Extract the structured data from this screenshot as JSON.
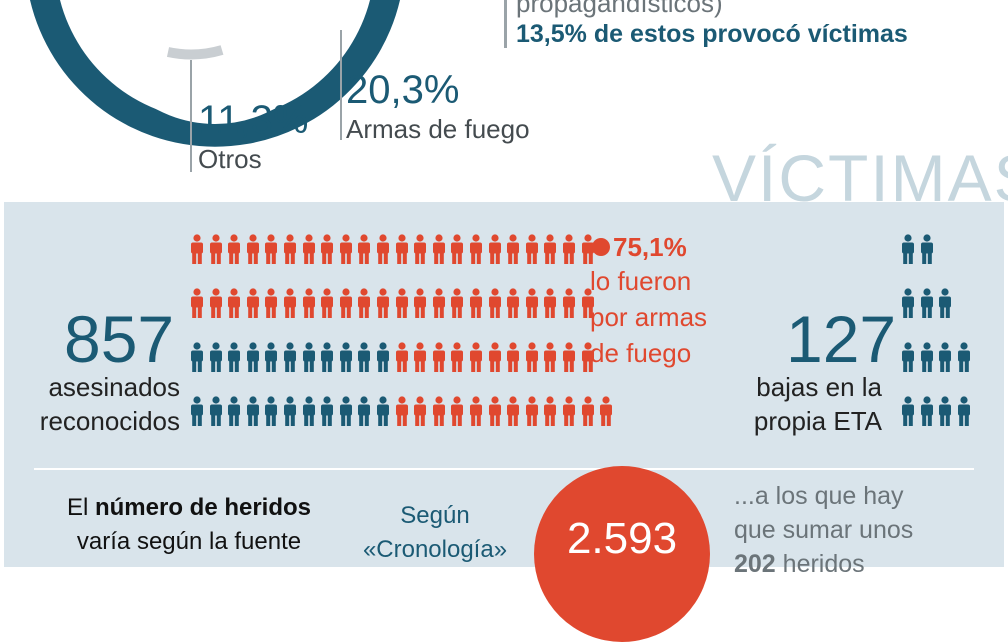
{
  "top": {
    "pct_fuego": "20,3%",
    "label_fuego": "Armas de fuego",
    "pct_otros": "11,3%",
    "label_otros": "Otros",
    "line_propaganda": "propagandísticos)",
    "line_victimas": "13,5% de estos provocó víctimas"
  },
  "section_title": "VÍCTIMAS",
  "asesinados": {
    "number": "857",
    "label_line1": "asesinados",
    "label_line2": "reconocidos",
    "pct": "75,1%",
    "note_line1": "lo fueron",
    "note_line2": "por armas",
    "note_line3": "de fuego"
  },
  "eta": {
    "number": "127",
    "label_line1": "bajas en la",
    "label_line2": "propia ETA"
  },
  "heridos": {
    "title_pre": "El ",
    "title_bold": "número de heridos",
    "title_line2": "varía según la fuente",
    "segun_line1": "Según",
    "segun_line2": "«Cronología»",
    "count": "2.593",
    "extra_line1": "...a los que hay",
    "extra_line2": "que sumar unos",
    "extra_bold": "202",
    "extra_rest": " heridos"
  },
  "colors": {
    "teal": "#1b5a74",
    "red": "#e0482f",
    "panel": "#d9e4eb",
    "title": "#c5d6de"
  },
  "icons": {
    "person": "person-icon"
  }
}
